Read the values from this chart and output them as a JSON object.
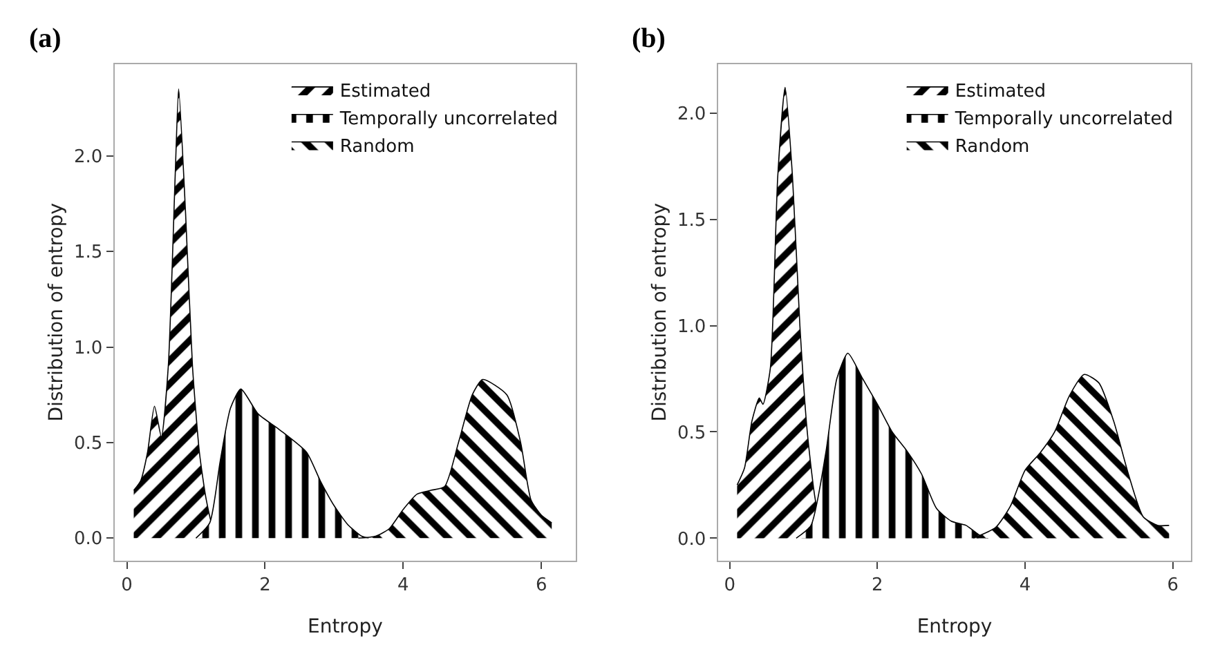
{
  "chart_data": [
    {
      "type": "area",
      "title": "(a)",
      "xlabel": "Entropy",
      "ylabel": "Distribution of entropy",
      "xlim": [
        -0.18,
        6.5
      ],
      "ylim": [
        -0.117,
        2.48
      ],
      "xticks": [
        0,
        2,
        4,
        6
      ],
      "yticks": [
        {
          "value": 0,
          "label": "0.0"
        },
        {
          "value": 0.5,
          "label": "0.5"
        },
        {
          "value": 1,
          "label": "1.0"
        },
        {
          "value": 1.5,
          "label": "1.5"
        },
        {
          "value": 2,
          "label": "2.0"
        }
      ],
      "grid": false,
      "legend": "top right",
      "series": [
        {
          "name": "Estimated",
          "color": "#000000",
          "x": [
            0.1,
            0.2,
            0.3,
            0.4,
            0.5,
            0.6,
            0.7,
            0.75,
            0.85,
            0.95,
            1.05,
            1.15,
            1.25,
            1.35
          ],
          "values": [
            0.25,
            0.3,
            0.45,
            0.69,
            0.53,
            0.9,
            1.9,
            2.35,
            1.7,
            0.9,
            0.45,
            0.2,
            0.05,
            0.0
          ]
        },
        {
          "name": "Temporally uncorrelated",
          "color": "#000000",
          "x": [
            1.0,
            1.2,
            1.35,
            1.5,
            1.65,
            1.9,
            2.2,
            2.6,
            2.8,
            3.0,
            3.2,
            3.4,
            3.5
          ],
          "values": [
            0.0,
            0.08,
            0.4,
            0.68,
            0.78,
            0.65,
            0.57,
            0.45,
            0.3,
            0.17,
            0.07,
            0.01,
            0.0
          ]
        },
        {
          "name": "Random",
          "color": "#000000",
          "x": [
            3.35,
            3.6,
            3.8,
            4.0,
            4.2,
            4.4,
            4.6,
            4.8,
            5.0,
            5.15,
            5.5,
            5.7,
            5.85,
            6.0,
            6.15
          ],
          "values": [
            0.0,
            0.01,
            0.05,
            0.15,
            0.23,
            0.25,
            0.27,
            0.5,
            0.75,
            0.83,
            0.75,
            0.5,
            0.2,
            0.12,
            0.08
          ]
        }
      ]
    },
    {
      "type": "area",
      "title": "(b)",
      "xlabel": "Entropy",
      "ylabel": "Distribution of entropy",
      "xlim": [
        -0.16,
        6.25
      ],
      "ylim": [
        -0.105,
        2.23
      ],
      "xticks": [
        0,
        2,
        4,
        6
      ],
      "yticks": [
        {
          "value": 0,
          "label": "0.0"
        },
        {
          "value": 0.5,
          "label": "0.5"
        },
        {
          "value": 1,
          "label": "1.0"
        },
        {
          "value": 1.5,
          "label": "1.5"
        },
        {
          "value": 2,
          "label": "2.0"
        }
      ],
      "grid": false,
      "legend": "top right",
      "series": [
        {
          "name": "Estimated",
          "color": "#000000",
          "x": [
            0.1,
            0.2,
            0.3,
            0.4,
            0.45,
            0.55,
            0.65,
            0.75,
            0.85,
            0.95,
            1.05,
            1.15,
            1.25,
            1.35
          ],
          "values": [
            0.25,
            0.33,
            0.55,
            0.66,
            0.63,
            0.8,
            1.7,
            2.12,
            1.7,
            1.0,
            0.5,
            0.2,
            0.03,
            0.0
          ]
        },
        {
          "name": "Temporally uncorrelated",
          "color": "#000000",
          "x": [
            0.9,
            1.1,
            1.3,
            1.45,
            1.6,
            1.8,
            2.0,
            2.2,
            2.4,
            2.6,
            2.8,
            3.0,
            3.2,
            3.4,
            3.5
          ],
          "values": [
            0.0,
            0.06,
            0.4,
            0.75,
            0.87,
            0.75,
            0.63,
            0.5,
            0.41,
            0.3,
            0.14,
            0.08,
            0.06,
            0.01,
            0.0
          ]
        },
        {
          "name": "Random",
          "color": "#000000",
          "x": [
            3.3,
            3.6,
            3.8,
            4.0,
            4.2,
            4.4,
            4.6,
            4.8,
            5.0,
            5.2,
            5.4,
            5.6,
            5.8,
            5.95
          ],
          "values": [
            0.0,
            0.05,
            0.15,
            0.32,
            0.4,
            0.5,
            0.67,
            0.77,
            0.73,
            0.55,
            0.3,
            0.1,
            0.06,
            0.06
          ]
        }
      ]
    }
  ]
}
